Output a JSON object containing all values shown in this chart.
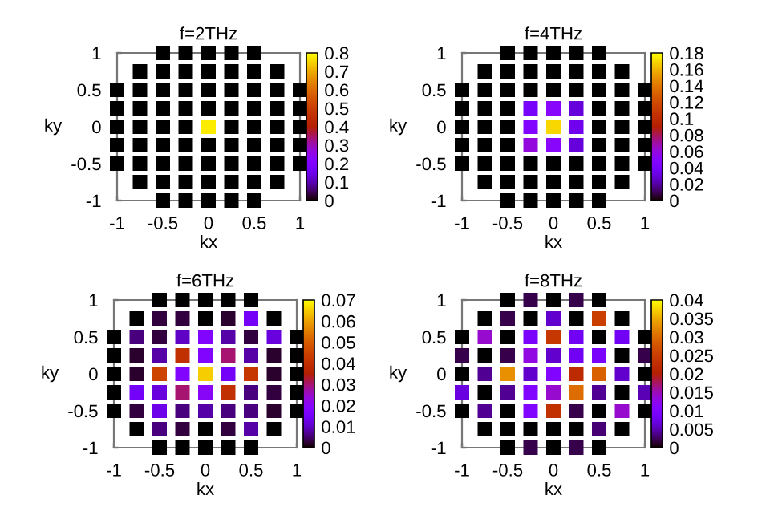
{
  "chart_data": [
    {
      "type": "scatter",
      "title": "f=2THz",
      "xlabel": "kx",
      "ylabel": "ky",
      "marker": "square",
      "x": [
        -0.5,
        -0.25,
        0,
        0.25,
        0.5,
        -0.75,
        -0.5,
        -0.25,
        0,
        0.25,
        0.5,
        0.75,
        -1,
        -0.75,
        -0.5,
        -0.25,
        0,
        0.25,
        0.5,
        0.75,
        1,
        -1,
        -0.75,
        -0.5,
        -0.25,
        0,
        0.25,
        0.5,
        0.75,
        1,
        -1,
        -0.75,
        -0.5,
        -0.25,
        0,
        0.25,
        0.5,
        0.75,
        1,
        -1,
        -0.75,
        -0.5,
        -0.25,
        0,
        0.25,
        0.5,
        0.75,
        1,
        -1,
        -0.75,
        -0.5,
        -0.25,
        0,
        0.25,
        0.5,
        0.75,
        1,
        -0.75,
        -0.5,
        -0.25,
        0,
        0.25,
        0.5,
        0.75,
        -0.5,
        -0.25,
        0,
        0.25,
        0.5
      ],
      "values": [
        1,
        1,
        1,
        1,
        1,
        0.75,
        0.75,
        0.75,
        0.75,
        0.75,
        0.75,
        0.75,
        0.5,
        0.5,
        0.5,
        0.5,
        0.5,
        0.5,
        0.5,
        0.5,
        0.5,
        0.25,
        0.25,
        0.25,
        0.25,
        0.25,
        0.25,
        0.25,
        0.25,
        0.25,
        0,
        0,
        0,
        0,
        0,
        0,
        0,
        0,
        0,
        -0.25,
        -0.25,
        -0.25,
        -0.25,
        -0.25,
        -0.25,
        -0.25,
        -0.25,
        -0.25,
        -0.5,
        -0.5,
        -0.5,
        -0.5,
        -0.5,
        -0.5,
        -0.5,
        -0.5,
        -0.5,
        -0.75,
        -0.75,
        -0.75,
        -0.75,
        -0.75,
        -0.75,
        -0.75,
        -1,
        -1,
        -1,
        -1,
        -1
      ],
      "cvalues": [
        0,
        0,
        0,
        0,
        0,
        0,
        0,
        0,
        0,
        0,
        0,
        0,
        0,
        0,
        0,
        0,
        0,
        0,
        0,
        0,
        0,
        0,
        0,
        0,
        0,
        0,
        0,
        0,
        0,
        0,
        0,
        0,
        0,
        0,
        0.78,
        0,
        0,
        0,
        0,
        0,
        0,
        0,
        0,
        0,
        0,
        0,
        0,
        0,
        0,
        0,
        0,
        0,
        0,
        0,
        0,
        0,
        0,
        0,
        0,
        0,
        0,
        0,
        0,
        0,
        0,
        0,
        0,
        0,
        0
      ],
      "xlim": [
        -1,
        1
      ],
      "ylim": [
        -1,
        1
      ],
      "xticks": [
        -1,
        -0.5,
        0,
        0.5,
        1
      ],
      "yticks": [
        -1,
        -0.5,
        0,
        0.5,
        1
      ],
      "clim": [
        0,
        0.8
      ],
      "cticks": [
        0,
        0.1,
        0.2,
        0.3,
        0.4,
        0.5,
        0.6,
        0.7,
        0.8
      ]
    },
    {
      "type": "scatter",
      "title": "f=4THz",
      "xlabel": "kx",
      "ylabel": "ky",
      "marker": "square",
      "x": [
        -0.5,
        -0.25,
        0,
        0.25,
        0.5,
        -0.75,
        -0.5,
        -0.25,
        0,
        0.25,
        0.5,
        0.75,
        -1,
        -0.75,
        -0.5,
        -0.25,
        0,
        0.25,
        0.5,
        0.75,
        1,
        -1,
        -0.75,
        -0.5,
        -0.25,
        0,
        0.25,
        0.5,
        0.75,
        1,
        -1,
        -0.75,
        -0.5,
        -0.25,
        0,
        0.25,
        0.5,
        0.75,
        1,
        -1,
        -0.75,
        -0.5,
        -0.25,
        0,
        0.25,
        0.5,
        0.75,
        1,
        -1,
        -0.75,
        -0.5,
        -0.25,
        0,
        0.25,
        0.5,
        0.75,
        1,
        -0.75,
        -0.5,
        -0.25,
        0,
        0.25,
        0.5,
        0.75,
        -0.5,
        -0.25,
        0,
        0.25,
        0.5
      ],
      "values": [
        1,
        1,
        1,
        1,
        1,
        0.75,
        0.75,
        0.75,
        0.75,
        0.75,
        0.75,
        0.75,
        0.5,
        0.5,
        0.5,
        0.5,
        0.5,
        0.5,
        0.5,
        0.5,
        0.5,
        0.25,
        0.25,
        0.25,
        0.25,
        0.25,
        0.25,
        0.25,
        0.25,
        0.25,
        0,
        0,
        0,
        0,
        0,
        0,
        0,
        0,
        0,
        -0.25,
        -0.25,
        -0.25,
        -0.25,
        -0.25,
        -0.25,
        -0.25,
        -0.25,
        -0.25,
        -0.5,
        -0.5,
        -0.5,
        -0.5,
        -0.5,
        -0.5,
        -0.5,
        -0.5,
        -0.5,
        -0.75,
        -0.75,
        -0.75,
        -0.75,
        -0.75,
        -0.75,
        -0.75,
        -1,
        -1,
        -1,
        -1,
        -1
      ],
      "cvalues": [
        0,
        0,
        0,
        0,
        0,
        0,
        0,
        0,
        0,
        0,
        0,
        0,
        0,
        0,
        0,
        0,
        0,
        0,
        0,
        0,
        0,
        0,
        0,
        0,
        0.04,
        0.05,
        0.03,
        0,
        0,
        0,
        0,
        0,
        0,
        0.045,
        0.17,
        0.035,
        0,
        0,
        0,
        0,
        0,
        0,
        0.06,
        0.05,
        0.03,
        0,
        0,
        0,
        0,
        0,
        0,
        0,
        0,
        0,
        0,
        0,
        0,
        0,
        0,
        0,
        0,
        0,
        0,
        0,
        0,
        0,
        0,
        0,
        0
      ],
      "xlim": [
        -1,
        1
      ],
      "ylim": [
        -1,
        1
      ],
      "xticks": [
        -1,
        -0.5,
        0,
        0.5,
        1
      ],
      "yticks": [
        -1,
        -0.5,
        0,
        0.5,
        1
      ],
      "clim": [
        0,
        0.18
      ],
      "cticks": [
        0,
        0.02,
        0.04,
        0.06,
        0.08,
        0.1,
        0.12,
        0.14,
        0.16,
        0.18
      ]
    },
    {
      "type": "scatter",
      "title": "f=6THz",
      "xlabel": "kx",
      "ylabel": "ky",
      "marker": "square",
      "x": [
        -0.5,
        -0.25,
        0,
        0.25,
        0.5,
        -0.75,
        -0.5,
        -0.25,
        0,
        0.25,
        0.5,
        0.75,
        -1,
        -0.75,
        -0.5,
        -0.25,
        0,
        0.25,
        0.5,
        0.75,
        1,
        -1,
        -0.75,
        -0.5,
        -0.25,
        0,
        0.25,
        0.5,
        0.75,
        1,
        -1,
        -0.75,
        -0.5,
        -0.25,
        0,
        0.25,
        0.5,
        0.75,
        1,
        -1,
        -0.75,
        -0.5,
        -0.25,
        0,
        0.25,
        0.5,
        0.75,
        1,
        -1,
        -0.75,
        -0.5,
        -0.25,
        0,
        0.25,
        0.5,
        0.75,
        1,
        -0.75,
        -0.5,
        -0.25,
        0,
        0.25,
        0.5,
        0.75,
        -0.5,
        -0.25,
        0,
        0.25,
        0.5
      ],
      "values": [
        1,
        1,
        1,
        1,
        1,
        0.75,
        0.75,
        0.75,
        0.75,
        0.75,
        0.75,
        0.75,
        0.5,
        0.5,
        0.5,
        0.5,
        0.5,
        0.5,
        0.5,
        0.5,
        0.5,
        0.25,
        0.25,
        0.25,
        0.25,
        0.25,
        0.25,
        0.25,
        0.25,
        0.25,
        0,
        0,
        0,
        0,
        0,
        0,
        0,
        0,
        0,
        -0.25,
        -0.25,
        -0.25,
        -0.25,
        -0.25,
        -0.25,
        -0.25,
        -0.25,
        -0.25,
        -0.5,
        -0.5,
        -0.5,
        -0.5,
        -0.5,
        -0.5,
        -0.5,
        -0.5,
        -0.5,
        -0.75,
        -0.75,
        -0.75,
        -0.75,
        -0.75,
        -0.75,
        -0.75,
        -1,
        -1,
        -1,
        -1,
        -1
      ],
      "cvalues": [
        0,
        0,
        0,
        0,
        0,
        0,
        0.003,
        0.003,
        0,
        0.002,
        0.015,
        0,
        0,
        0.006,
        0.003,
        0.01,
        0.018,
        0.008,
        0.003,
        0.012,
        0,
        0,
        0.002,
        0.008,
        0.04,
        0.018,
        0.03,
        0.008,
        0.002,
        0,
        0,
        0.002,
        0.045,
        0.018,
        0.065,
        0.015,
        0.042,
        0.002,
        0,
        0,
        0.015,
        0.012,
        0.03,
        0.02,
        0.04,
        0.006,
        0.003,
        0,
        0,
        0.003,
        0.013,
        0.006,
        0.008,
        0.006,
        0.006,
        0.002,
        0,
        0,
        0.006,
        0.003,
        0,
        0.003,
        0.008,
        0,
        0,
        0,
        0,
        0,
        0
      ],
      "xlim": [
        -1,
        1
      ],
      "ylim": [
        -1,
        1
      ],
      "xticks": [
        -1,
        -0.5,
        0,
        0.5,
        1
      ],
      "yticks": [
        -1,
        -0.5,
        0,
        0.5,
        1
      ],
      "clim": [
        0,
        0.07
      ],
      "cticks": [
        0,
        0.01,
        0.02,
        0.03,
        0.04,
        0.05,
        0.06,
        0.07
      ]
    },
    {
      "type": "scatter",
      "title": "f=8THz",
      "xlabel": "kx",
      "ylabel": "ky",
      "marker": "square",
      "x": [
        -0.5,
        -0.25,
        0,
        0.25,
        0.5,
        -0.75,
        -0.5,
        -0.25,
        0,
        0.25,
        0.5,
        0.75,
        -1,
        -0.75,
        -0.5,
        -0.25,
        0,
        0.25,
        0.5,
        0.75,
        1,
        -1,
        -0.75,
        -0.5,
        -0.25,
        0,
        0.25,
        0.5,
        0.75,
        1,
        -1,
        -0.75,
        -0.5,
        -0.25,
        0,
        0.25,
        0.5,
        0.75,
        1,
        -1,
        -0.75,
        -0.5,
        -0.25,
        0,
        0.25,
        0.5,
        0.75,
        1,
        -1,
        -0.75,
        -0.5,
        -0.25,
        0,
        0.25,
        0.5,
        0.75,
        1,
        -0.75,
        -0.5,
        -0.25,
        0,
        0.25,
        0.5,
        0.75,
        -0.5,
        -0.25,
        0,
        0.25,
        0.5
      ],
      "values": [
        1,
        1,
        1,
        1,
        1,
        0.75,
        0.75,
        0.75,
        0.75,
        0.75,
        0.75,
        0.75,
        0.5,
        0.5,
        0.5,
        0.5,
        0.5,
        0.5,
        0.5,
        0.5,
        0.5,
        0.25,
        0.25,
        0.25,
        0.25,
        0.25,
        0.25,
        0.25,
        0.25,
        0.25,
        0,
        0,
        0,
        0,
        0,
        0,
        0,
        0,
        0,
        -0.25,
        -0.25,
        -0.25,
        -0.25,
        -0.25,
        -0.25,
        -0.25,
        -0.25,
        -0.25,
        -0.5,
        -0.5,
        -0.5,
        -0.5,
        -0.5,
        -0.5,
        -0.5,
        -0.5,
        -0.5,
        -0.75,
        -0.75,
        -0.75,
        -0.75,
        -0.75,
        -0.75,
        -0.75,
        -1,
        -1,
        -1,
        -1,
        -1
      ],
      "cvalues": [
        0,
        0.002,
        0,
        0.002,
        0,
        0,
        0.002,
        0,
        0.006,
        0,
        0.025,
        0,
        0,
        0.014,
        0,
        0.009,
        0.024,
        0.008,
        0,
        0.008,
        0,
        0.002,
        0,
        0.002,
        0.013,
        0.006,
        0.008,
        0.009,
        0,
        0.002,
        0,
        0.004,
        0.033,
        0.006,
        0.01,
        0.022,
        0.029,
        0.006,
        0,
        0.007,
        0,
        0.004,
        0.01,
        0.014,
        0.03,
        0.004,
        0,
        0.005,
        0,
        0.004,
        0,
        0.01,
        0.023,
        0.002,
        0,
        0.014,
        0,
        0,
        0,
        0,
        0,
        0,
        0.003,
        0,
        0,
        0.002,
        0,
        0.002,
        0
      ],
      "xlim": [
        -1,
        1
      ],
      "ylim": [
        -1,
        1
      ],
      "xticks": [
        -1,
        -0.5,
        0,
        0.5,
        1
      ],
      "yticks": [
        -1,
        -0.5,
        0,
        0.5,
        1
      ],
      "clim": [
        0,
        0.04
      ],
      "cticks": [
        0,
        0.005,
        0.01,
        0.015,
        0.02,
        0.025,
        0.03,
        0.035,
        0.04
      ]
    }
  ]
}
